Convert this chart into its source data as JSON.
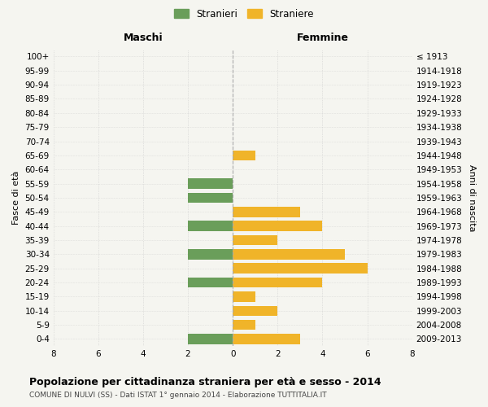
{
  "age_groups": [
    "100+",
    "95-99",
    "90-94",
    "85-89",
    "80-84",
    "75-79",
    "70-74",
    "65-69",
    "60-64",
    "55-59",
    "50-54",
    "45-49",
    "40-44",
    "35-39",
    "30-34",
    "25-29",
    "20-24",
    "15-19",
    "10-14",
    "5-9",
    "0-4"
  ],
  "birth_years": [
    "≤ 1913",
    "1914-1918",
    "1919-1923",
    "1924-1928",
    "1929-1933",
    "1934-1938",
    "1939-1943",
    "1944-1948",
    "1949-1953",
    "1954-1958",
    "1959-1963",
    "1964-1968",
    "1969-1973",
    "1974-1978",
    "1979-1983",
    "1984-1988",
    "1989-1993",
    "1994-1998",
    "1999-2003",
    "2004-2008",
    "2009-2013"
  ],
  "stranieri": [
    0,
    0,
    0,
    0,
    0,
    0,
    0,
    0,
    0,
    2,
    2,
    0,
    2,
    0,
    2,
    0,
    2,
    0,
    0,
    0,
    2
  ],
  "straniere": [
    0,
    0,
    0,
    0,
    0,
    0,
    0,
    1,
    0,
    0,
    0,
    3,
    4,
    2,
    5,
    6,
    4,
    1,
    2,
    1,
    3
  ],
  "stranieri_color": "#6a9e5a",
  "straniere_color": "#f0b429",
  "xlim": 8,
  "title": "Popolazione per cittadinanza straniera per età e sesso - 2014",
  "subtitle": "COMUNE DI NULVI (SS) - Dati ISTAT 1° gennaio 2014 - Elaborazione TUTTITALIA.IT",
  "xlabel_left": "Maschi",
  "xlabel_right": "Femmine",
  "ylabel_left": "Fasce di età",
  "ylabel_right": "Anni di nascita",
  "legend_stranieri": "Stranieri",
  "legend_straniere": "Straniere",
  "bg_color": "#f5f5f0",
  "grid_color": "#cccccc",
  "bar_height": 0.72
}
